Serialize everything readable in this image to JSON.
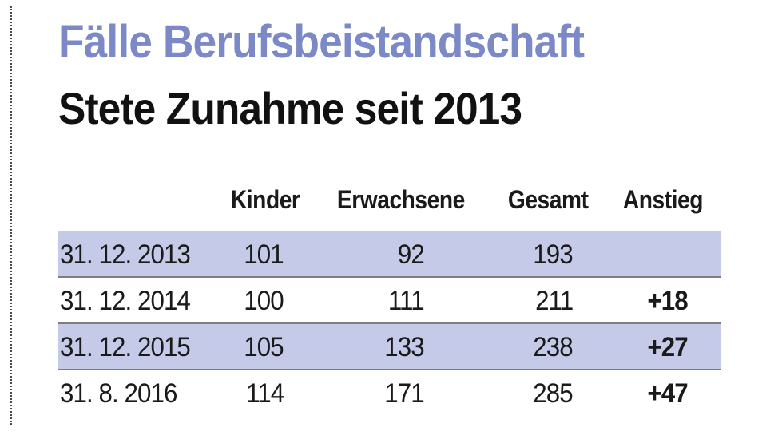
{
  "title": "Fälle Berufsbeistandschaft",
  "subtitle": "Stete Zunahme seit 2013",
  "colors": {
    "title": "#7b89c6",
    "subtitle": "#111111",
    "row_shade": "#c5cae8",
    "text": "#1a1a1a"
  },
  "chart_data": {
    "type": "table",
    "title": "Fälle Berufsbeistandschaft",
    "subtitle": "Stete Zunahme seit 2013",
    "columns": [
      "",
      "Kinder",
      "Erwachsene",
      "Gesamt",
      "Anstieg"
    ],
    "rows": [
      {
        "date": "31. 12. 2013",
        "kinder": "101",
        "erwachsene": "92",
        "gesamt": "193",
        "anstieg": ""
      },
      {
        "date": "31. 12. 2014",
        "kinder": "100",
        "erwachsene": "111",
        "gesamt": "211",
        "anstieg": "+18"
      },
      {
        "date": "31. 12. 2015",
        "kinder": "105",
        "erwachsene": "133",
        "gesamt": "238",
        "anstieg": "+27"
      },
      {
        "date": "31. 8. 2016",
        "kinder": "114",
        "erwachsene": "171",
        "gesamt": "285",
        "anstieg": "+47"
      }
    ]
  }
}
